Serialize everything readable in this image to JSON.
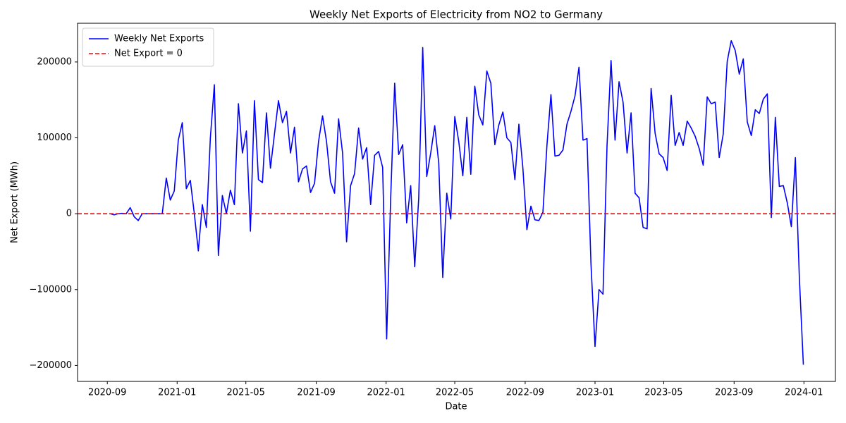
{
  "chart_data": {
    "type": "line",
    "title": "Weekly Net Exports of Electricity from NO2 to Germany",
    "xlabel": "Date",
    "ylabel": "Net Export (MWh)",
    "x": [
      "2020-09-06",
      "2020-09-13",
      "2020-09-20",
      "2020-09-27",
      "2020-10-04",
      "2020-10-11",
      "2020-10-18",
      "2020-10-25",
      "2020-11-01",
      "2020-11-08",
      "2020-11-15",
      "2020-11-22",
      "2020-11-29",
      "2020-12-06",
      "2020-12-13",
      "2020-12-20",
      "2020-12-27",
      "2021-01-03",
      "2021-01-10",
      "2021-01-17",
      "2021-01-24",
      "2021-01-31",
      "2021-02-07",
      "2021-02-14",
      "2021-02-21",
      "2021-02-28",
      "2021-03-07",
      "2021-03-14",
      "2021-03-21",
      "2021-03-28",
      "2021-04-04",
      "2021-04-11",
      "2021-04-18",
      "2021-04-25",
      "2021-05-02",
      "2021-05-09",
      "2021-05-16",
      "2021-05-23",
      "2021-05-30",
      "2021-06-06",
      "2021-06-13",
      "2021-06-20",
      "2021-06-27",
      "2021-07-04",
      "2021-07-11",
      "2021-07-18",
      "2021-07-25",
      "2021-08-01",
      "2021-08-08",
      "2021-08-15",
      "2021-08-22",
      "2021-08-29",
      "2021-09-05",
      "2021-09-12",
      "2021-09-19",
      "2021-09-26",
      "2021-10-03",
      "2021-10-10",
      "2021-10-17",
      "2021-10-24",
      "2021-10-31",
      "2021-11-07",
      "2021-11-14",
      "2021-11-21",
      "2021-11-28",
      "2021-12-05",
      "2021-12-12",
      "2021-12-19",
      "2021-12-26",
      "2022-01-02",
      "2022-01-09",
      "2022-01-16",
      "2022-01-23",
      "2022-01-30",
      "2022-02-06",
      "2022-02-13",
      "2022-02-20",
      "2022-02-27",
      "2022-03-06",
      "2022-03-13",
      "2022-03-20",
      "2022-03-27",
      "2022-04-03",
      "2022-04-10",
      "2022-04-17",
      "2022-04-24",
      "2022-05-01",
      "2022-05-08",
      "2022-05-15",
      "2022-05-22",
      "2022-05-29",
      "2022-06-05",
      "2022-06-12",
      "2022-06-19",
      "2022-06-26",
      "2022-07-03",
      "2022-07-10",
      "2022-07-17",
      "2022-07-24",
      "2022-07-31",
      "2022-08-07",
      "2022-08-14",
      "2022-08-21",
      "2022-08-28",
      "2022-09-04",
      "2022-09-11",
      "2022-09-18",
      "2022-09-25",
      "2022-10-02",
      "2022-10-09",
      "2022-10-16",
      "2022-10-23",
      "2022-10-30",
      "2022-11-06",
      "2022-11-13",
      "2022-11-20",
      "2022-11-27",
      "2022-12-04",
      "2022-12-11",
      "2022-12-18",
      "2022-12-25",
      "2023-01-01",
      "2023-01-08",
      "2023-01-15",
      "2023-01-22",
      "2023-01-29",
      "2023-02-05",
      "2023-02-12",
      "2023-02-19",
      "2023-02-26",
      "2023-03-05",
      "2023-03-12",
      "2023-03-19",
      "2023-03-26",
      "2023-04-02",
      "2023-04-09",
      "2023-04-16",
      "2023-04-23",
      "2023-04-30",
      "2023-05-07",
      "2023-05-14",
      "2023-05-21",
      "2023-05-28",
      "2023-06-04",
      "2023-06-11",
      "2023-06-18",
      "2023-06-25",
      "2023-07-02",
      "2023-07-09",
      "2023-07-16",
      "2023-07-23",
      "2023-07-30",
      "2023-08-06",
      "2023-08-13",
      "2023-08-20",
      "2023-08-27",
      "2023-09-03",
      "2023-09-10",
      "2023-09-17",
      "2023-09-24",
      "2023-10-01",
      "2023-10-08",
      "2023-10-15",
      "2023-10-22",
      "2023-10-29",
      "2023-11-05",
      "2023-11-12",
      "2023-11-19",
      "2023-11-26",
      "2023-12-03",
      "2023-12-10",
      "2023-12-17",
      "2023-12-24",
      "2023-12-31"
    ],
    "series": [
      {
        "name": "Weekly Net Exports",
        "color": "#0000ff",
        "values": [
          0,
          -1500,
          0,
          500,
          0,
          8000,
          -4000,
          -9000,
          0,
          0,
          0,
          0,
          0,
          0,
          47000,
          18000,
          30000,
          97000,
          120000,
          33000,
          44000,
          0,
          -49000,
          12000,
          -18000,
          100000,
          170000,
          -55000,
          24000,
          0,
          31000,
          12000,
          145000,
          80000,
          109000,
          -23000,
          149000,
          45000,
          41000,
          133000,
          60000,
          105000,
          149000,
          120000,
          135000,
          80000,
          114000,
          42000,
          59000,
          63000,
          28000,
          40000,
          95000,
          129000,
          95000,
          42000,
          27000,
          125000,
          80000,
          -37000,
          37000,
          53000,
          113000,
          72000,
          87000,
          12000,
          77000,
          82000,
          61000,
          -165000,
          20000,
          172000,
          78000,
          91000,
          -12000,
          37000,
          -70000,
          20000,
          219000,
          49000,
          80000,
          116000,
          67000,
          -84000,
          27000,
          -7000,
          128000,
          95000,
          50000,
          127000,
          52000,
          168000,
          130000,
          117000,
          188000,
          172000,
          91000,
          117000,
          134000,
          100000,
          94000,
          45000,
          118000,
          60000,
          -21000,
          10000,
          -8000,
          -9000,
          2000,
          90000,
          157000,
          76000,
          77000,
          84000,
          118000,
          135000,
          155000,
          193000,
          97000,
          99000,
          -67000,
          -175000,
          -100000,
          -106000,
          90000,
          202000,
          97000,
          174000,
          147000,
          80000,
          133000,
          27000,
          21000,
          -18000,
          -20000,
          165000,
          106000,
          79000,
          74000,
          57000,
          156000,
          90000,
          107000,
          90000,
          122000,
          113000,
          102000,
          86000,
          64000,
          154000,
          145000,
          147000,
          74000,
          105000,
          201000,
          228000,
          215000,
          184000,
          204000,
          121000,
          103000,
          137000,
          132000,
          151000,
          158000,
          -5000,
          127000,
          36000,
          37000,
          14000,
          -17000,
          74000,
          -85000,
          -199000
        ]
      }
    ],
    "hline": {
      "name": "Net Export = 0",
      "value": 0,
      "color": "#ff0000"
    },
    "xlim": [
      "2020-07-11",
      "2024-02-25"
    ],
    "xticks": [
      {
        "value": "2020-09-01",
        "label": "2020-09"
      },
      {
        "value": "2021-01-01",
        "label": "2021-01"
      },
      {
        "value": "2021-05-01",
        "label": "2021-05"
      },
      {
        "value": "2021-09-01",
        "label": "2021-09"
      },
      {
        "value": "2022-01-01",
        "label": "2022-01"
      },
      {
        "value": "2022-05-01",
        "label": "2022-05"
      },
      {
        "value": "2022-09-01",
        "label": "2022-09"
      },
      {
        "value": "2023-01-01",
        "label": "2023-01"
      },
      {
        "value": "2023-05-01",
        "label": "2023-05"
      },
      {
        "value": "2023-09-01",
        "label": "2023-09"
      },
      {
        "value": "2024-01-01",
        "label": "2024-01"
      }
    ],
    "ylim": [
      -221000,
      251000
    ],
    "yticks": [
      {
        "value": -200000,
        "label": "−200000"
      },
      {
        "value": -100000,
        "label": "−100000"
      },
      0,
      100000,
      200000
    ],
    "legend": "upper left",
    "grid": false
  }
}
